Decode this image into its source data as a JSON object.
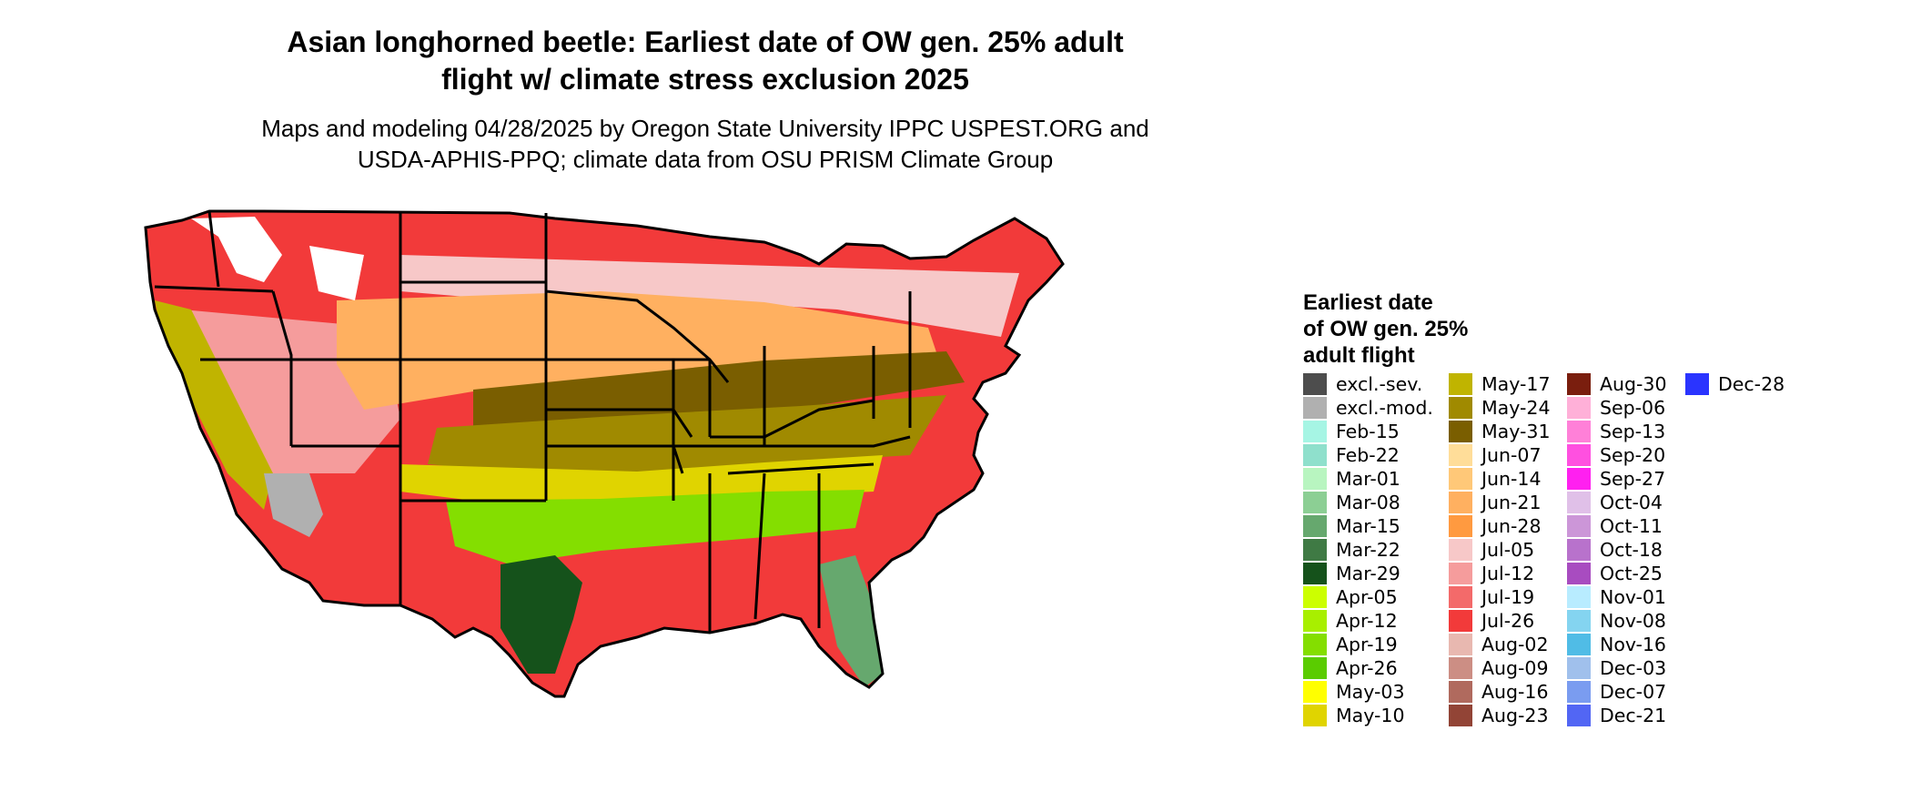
{
  "title_line1": "Asian longhorned beetle: Earliest date of OW gen. 25% adult",
  "title_line2": "flight w/ climate stress exclusion 2025",
  "subtitle_line1": "Maps and modeling 04/28/2025 by Oregon State University IPPC USPEST.ORG and",
  "subtitle_line2": "USDA-APHIS-PPQ; climate data from OSU PRISM Climate Group",
  "legend": {
    "title_lines": [
      "Earliest date",
      "of OW gen. 25%",
      "adult flight"
    ],
    "columns": [
      [
        {
          "label": "excl.-sev.",
          "color": "#4d4d4d"
        },
        {
          "label": "excl.-mod.",
          "color": "#b0b0b0"
        },
        {
          "label": "Feb-15",
          "color": "#a6f5e4"
        },
        {
          "label": "Feb-22",
          "color": "#8fe0cc"
        },
        {
          "label": "Mar-01",
          "color": "#b8f5c0"
        },
        {
          "label": "Mar-08",
          "color": "#8ccf94"
        },
        {
          "label": "Mar-15",
          "color": "#66a86e"
        },
        {
          "label": "Mar-22",
          "color": "#3f7a44"
        },
        {
          "label": "Mar-29",
          "color": "#15521b"
        },
        {
          "label": "Apr-05",
          "color": "#ccff00"
        },
        {
          "label": "Apr-12",
          "color": "#a8ef00"
        },
        {
          "label": "Apr-19",
          "color": "#84de00"
        },
        {
          "label": "Apr-26",
          "color": "#5acc00"
        },
        {
          "label": "May-03",
          "color": "#ffff00"
        },
        {
          "label": "May-10",
          "color": "#e0d400"
        }
      ],
      [
        {
          "label": "May-17",
          "color": "#c0b400"
        },
        {
          "label": "May-24",
          "color": "#a08a00"
        },
        {
          "label": "May-31",
          "color": "#7a5e00"
        },
        {
          "label": "Jun-07",
          "color": "#ffdd99"
        },
        {
          "label": "Jun-14",
          "color": "#ffc878"
        },
        {
          "label": "Jun-21",
          "color": "#ffb060"
        },
        {
          "label": "Jun-28",
          "color": "#ff9a40"
        },
        {
          "label": "Jul-05",
          "color": "#f7c8c8"
        },
        {
          "label": "Jul-12",
          "color": "#f59c9c"
        },
        {
          "label": "Jul-19",
          "color": "#f36a6a"
        },
        {
          "label": "Jul-26",
          "color": "#f23a3a"
        },
        {
          "label": "Aug-02",
          "color": "#e8b8b0"
        },
        {
          "label": "Aug-09",
          "color": "#cc8e84"
        },
        {
          "label": "Aug-16",
          "color": "#b06a5e"
        },
        {
          "label": "Aug-23",
          "color": "#924436"
        }
      ],
      [
        {
          "label": "Aug-30",
          "color": "#7a1e0e"
        },
        {
          "label": "Sep-06",
          "color": "#ffb0d8"
        },
        {
          "label": "Sep-13",
          "color": "#ff80d8"
        },
        {
          "label": "Sep-20",
          "color": "#ff50e0"
        },
        {
          "label": "Sep-27",
          "color": "#ff20f0"
        },
        {
          "label": "Oct-04",
          "color": "#e0c0e8"
        },
        {
          "label": "Oct-11",
          "color": "#cc96d8"
        },
        {
          "label": "Oct-18",
          "color": "#b872cc"
        },
        {
          "label": "Oct-25",
          "color": "#a84cc0"
        },
        {
          "label": "Nov-01",
          "color": "#b8ecff"
        },
        {
          "label": "Nov-08",
          "color": "#84d4f0"
        },
        {
          "label": "Nov-16",
          "color": "#50bce6"
        },
        {
          "label": "Dec-03",
          "color": "#a0c0ec"
        },
        {
          "label": "Dec-07",
          "color": "#7a9cf0"
        },
        {
          "label": "Dec-21",
          "color": "#5266f4"
        }
      ],
      [
        {
          "label": "Dec-28",
          "color": "#2a34ff"
        }
      ]
    ]
  },
  "map_zones": [
    {
      "zone": "northern-plains",
      "legend_label": "Jul-26"
    },
    {
      "zone": "north-central-plains",
      "legend_label": "Jul-05"
    },
    {
      "zone": "central-plains",
      "legend_label": "Jun-21"
    },
    {
      "zone": "ohio-valley",
      "legend_label": "May-31"
    },
    {
      "zone": "southern-plains",
      "legend_label": "May-24"
    },
    {
      "zone": "gulf-coast",
      "legend_label": "Apr-19"
    },
    {
      "zone": "south-texas",
      "legend_label": "Mar-29"
    },
    {
      "zone": "south-florida",
      "legend_label": "Mar-15"
    },
    {
      "zone": "california-central-valley",
      "legend_label": "May-17"
    },
    {
      "zone": "southwest-desert",
      "legend_label": "excl.-mod."
    },
    {
      "zone": "great-basin",
      "legend_label": "Jul-12"
    }
  ]
}
